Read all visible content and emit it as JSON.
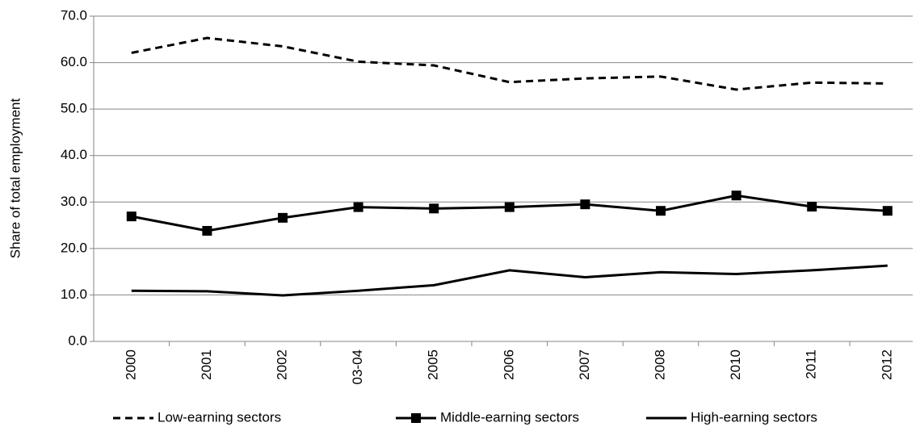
{
  "chart_data": {
    "type": "line",
    "y_label": "Share of total employment",
    "categories": [
      "2000",
      "2001",
      "2002",
      "03-04",
      "2005",
      "2006",
      "2007",
      "2008",
      "2010",
      "2011",
      "2012"
    ],
    "series": [
      {
        "name": "Low-earning sectors",
        "color": "#000000",
        "dash": true,
        "marker": "none",
        "values": [
          62.1,
          65.3,
          63.5,
          60.2,
          59.4,
          55.8,
          56.6,
          57.0,
          54.2,
          55.7,
          55.5
        ]
      },
      {
        "name": "Middle-earning sectors",
        "color": "#000000",
        "dash": false,
        "marker": "square",
        "values": [
          26.9,
          23.8,
          26.6,
          28.9,
          28.6,
          28.9,
          29.5,
          28.1,
          31.4,
          29.0,
          28.1
        ]
      },
      {
        "name": "High-earning sectors",
        "color": "#000000",
        "dash": false,
        "marker": "none",
        "values": [
          10.9,
          10.8,
          9.9,
          10.9,
          12.1,
          15.3,
          13.8,
          14.9,
          14.5,
          15.3,
          16.3
        ]
      }
    ],
    "ylim": [
      0,
      70
    ],
    "yticks": [
      {
        "value": 0,
        "label": "0.0"
      },
      {
        "value": 10,
        "label": "10.0"
      },
      {
        "value": 20,
        "label": "20.0"
      },
      {
        "value": 30,
        "label": "30.0"
      },
      {
        "value": 40,
        "label": "40.0"
      },
      {
        "value": 50,
        "label": "50.0"
      },
      {
        "value": 60,
        "label": "60.0"
      },
      {
        "value": 70,
        "label": "70.0"
      }
    ],
    "grid": true,
    "legend": "bottom"
  }
}
